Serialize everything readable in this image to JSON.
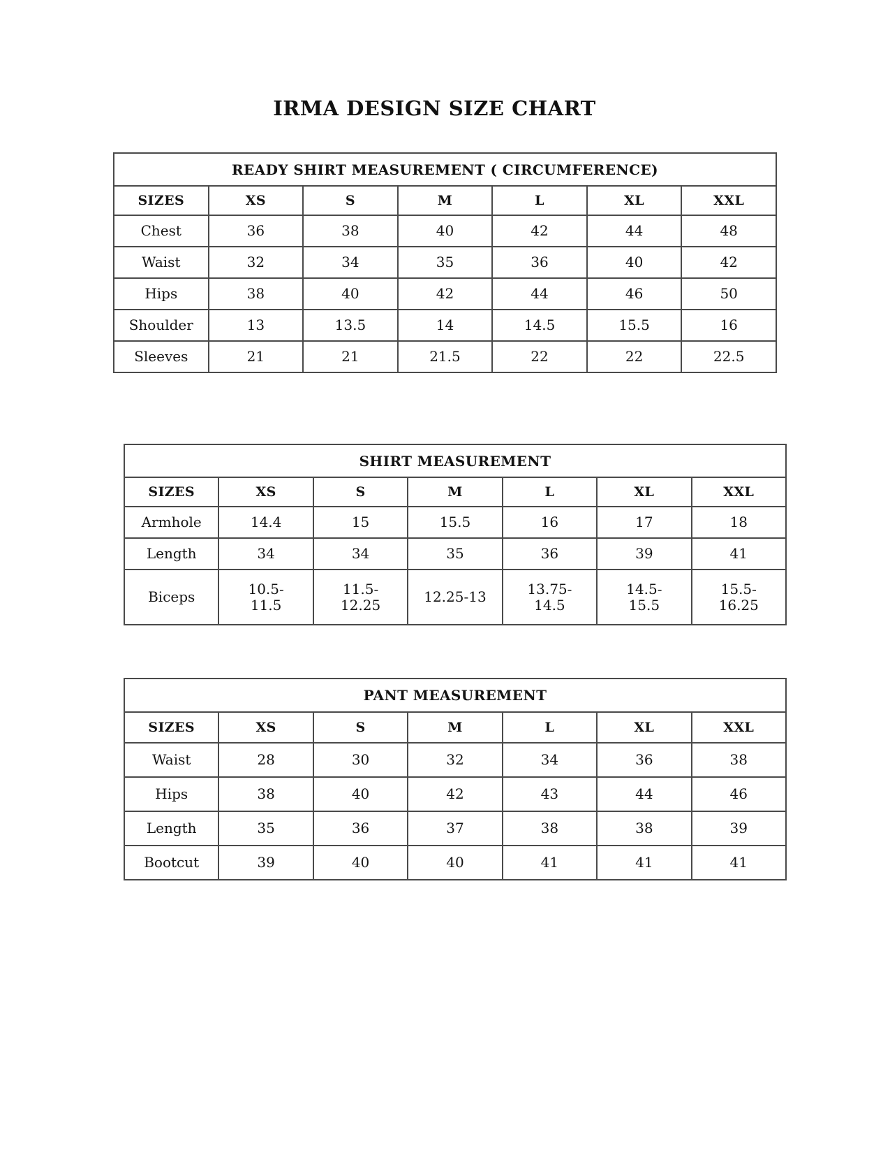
{
  "page_title": "IRMA DESIGN SIZE CHART",
  "text_color": "#141414",
  "border_color": "#4a4a4a",
  "background_color": "#ffffff",
  "tables": [
    {
      "title": "READY SHIRT MEASUREMENT ( CIRCUMFERENCE)",
      "columns": [
        "SIZES",
        "XS",
        "S",
        "M",
        "L",
        "XL",
        "XXL"
      ],
      "rows": [
        {
          "label": "Chest",
          "values": [
            "36",
            "38",
            "40",
            "42",
            "44",
            "48"
          ]
        },
        {
          "label": "Waist",
          "values": [
            "32",
            "34",
            "35",
            "36",
            "40",
            "42"
          ]
        },
        {
          "label": "Hips",
          "values": [
            "38",
            "40",
            "42",
            "44",
            "46",
            "50"
          ]
        },
        {
          "label": "Shoulder",
          "values": [
            "13",
            "13.5",
            "14",
            "14.5",
            "15.5",
            "16"
          ]
        },
        {
          "label": "Sleeves",
          "values": [
            "21",
            "21",
            "21.5",
            "22",
            "22",
            "22.5"
          ]
        }
      ]
    },
    {
      "title": "SHIRT MEASUREMENT",
      "columns": [
        "SIZES",
        "XS",
        "S",
        "M",
        "L",
        "XL",
        "XXL"
      ],
      "rows": [
        {
          "label": "Armhole",
          "values": [
            "14.4",
            "15",
            "15.5",
            "16",
            "17",
            "18"
          ]
        },
        {
          "label": "Length",
          "values": [
            "34",
            "34",
            "35",
            "36",
            "39",
            "41"
          ]
        },
        {
          "label": "Biceps",
          "values": [
            "10.5-\n11.5",
            "11.5-\n12.25",
            "12.25-13",
            "13.75-\n14.5",
            "14.5-\n15.5",
            "15.5-\n16.25"
          ]
        }
      ]
    },
    {
      "title": "PANT MEASUREMENT",
      "columns": [
        "SIZES",
        "XS",
        "S",
        "M",
        "L",
        "XL",
        "XXL"
      ],
      "rows": [
        {
          "label": "Waist",
          "values": [
            "28",
            "30",
            "32",
            "34",
            "36",
            "38"
          ]
        },
        {
          "label": "Hips",
          "values": [
            "38",
            "40",
            "42",
            "43",
            "44",
            "46"
          ]
        },
        {
          "label": "Length",
          "values": [
            "35",
            "36",
            "37",
            "38",
            "38",
            "39"
          ]
        },
        {
          "label": "Bootcut",
          "values": [
            "39",
            "40",
            "40",
            "41",
            "41",
            "41"
          ]
        }
      ]
    }
  ]
}
